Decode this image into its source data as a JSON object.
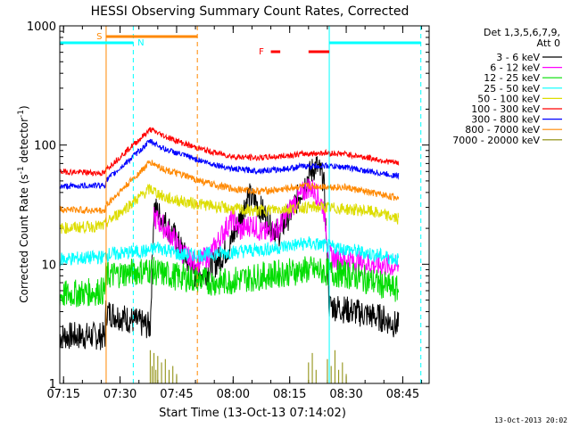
{
  "chart_data": {
    "type": "line",
    "title": "HESSI Observing Summary Count Rates, Corrected",
    "xlabel": "Start Time (13-Oct-13 07:14:02)",
    "ylabel_main": "Corrected Count Rate (s",
    "ylabel_sup1": "-1",
    "ylabel_mid": " detector",
    "ylabel_sup2": "-1",
    "ylabel_end": ")",
    "y_scale": "log",
    "ylim": [
      1,
      1000
    ],
    "xlim_minutes": [
      0,
      98
    ],
    "x_ticks": [
      {
        "label": "07:15",
        "t": 1
      },
      {
        "label": "07:30",
        "t": 16
      },
      {
        "label": "07:45",
        "t": 31
      },
      {
        "label": "08:00",
        "t": 46
      },
      {
        "label": "08:15",
        "t": 61
      },
      {
        "label": "08:30",
        "t": 76
      },
      {
        "label": "08:45",
        "t": 91
      }
    ],
    "y_ticks": [
      {
        "label": "1",
        "v": 1
      },
      {
        "label": "10",
        "v": 10
      },
      {
        "label": "100",
        "v": 100
      },
      {
        "label": "1000",
        "v": 1000
      }
    ],
    "legend_header": [
      "Det 1,3,5,6,7,9,",
      "Att 0"
    ],
    "series": [
      {
        "name": "3 - 6 keV",
        "color": "#000000",
        "points": [
          [
            0,
            2.5
          ],
          [
            12,
            2.5
          ],
          [
            12.2,
            4
          ],
          [
            24,
            3
          ],
          [
            25,
            30
          ],
          [
            30,
            18
          ],
          [
            33,
            12
          ],
          [
            36,
            8
          ],
          [
            40,
            9
          ],
          [
            45,
            14
          ],
          [
            48,
            25
          ],
          [
            50,
            38
          ],
          [
            53,
            30
          ],
          [
            56,
            22
          ],
          [
            58,
            18
          ],
          [
            62,
            30
          ],
          [
            66,
            55
          ],
          [
            68,
            68
          ],
          [
            70,
            52
          ],
          [
            71.5,
            4.5
          ],
          [
            78,
            4
          ],
          [
            86,
            3.5
          ],
          [
            90,
            3
          ]
        ]
      },
      {
        "name": "6 - 12 keV",
        "color": "#ff00ff",
        "points": [
          [
            25,
            25
          ],
          [
            30,
            17
          ],
          [
            33,
            12
          ],
          [
            36,
            10
          ],
          [
            40,
            12
          ],
          [
            44,
            20
          ],
          [
            46,
            24
          ],
          [
            48,
            19
          ],
          [
            51,
            22
          ],
          [
            54,
            18
          ],
          [
            58,
            20
          ],
          [
            62,
            32
          ],
          [
            66,
            45
          ],
          [
            68,
            40
          ],
          [
            70,
            30
          ],
          [
            71.5,
            11.5
          ],
          [
            76,
            11
          ],
          [
            82,
            10
          ],
          [
            90,
            9.5
          ]
        ]
      },
      {
        "name": "12 - 25 keV",
        "color": "#00dd00",
        "points": [
          [
            0,
            5.5
          ],
          [
            12,
            6
          ],
          [
            12.2,
            8
          ],
          [
            24,
            9
          ],
          [
            26,
            8.5
          ],
          [
            30,
            8
          ],
          [
            36,
            7.5
          ],
          [
            42,
            7
          ],
          [
            48,
            7.5
          ],
          [
            54,
            8
          ],
          [
            60,
            8.5
          ],
          [
            66,
            9
          ],
          [
            72,
            8.5
          ],
          [
            78,
            8
          ],
          [
            84,
            7
          ],
          [
            90,
            6
          ]
        ]
      },
      {
        "name": "25 - 50 keV",
        "color": "#00ffff",
        "points": [
          [
            0,
            11
          ],
          [
            12,
            11.5
          ],
          [
            12.2,
            12
          ],
          [
            24,
            13
          ],
          [
            26,
            14
          ],
          [
            32,
            12
          ],
          [
            38,
            12
          ],
          [
            44,
            12.5
          ],
          [
            50,
            13
          ],
          [
            56,
            13.5
          ],
          [
            62,
            14.5
          ],
          [
            66,
            15
          ],
          [
            72,
            14
          ],
          [
            78,
            13
          ],
          [
            84,
            12
          ],
          [
            90,
            11
          ]
        ]
      },
      {
        "name": "50 - 100 keV",
        "color": "#dddd00",
        "points": [
          [
            0,
            20
          ],
          [
            12,
            21
          ],
          [
            12.2,
            22
          ],
          [
            24,
            43
          ],
          [
            28,
            36
          ],
          [
            34,
            33
          ],
          [
            40,
            31
          ],
          [
            46,
            29
          ],
          [
            52,
            28
          ],
          [
            58,
            29
          ],
          [
            64,
            30
          ],
          [
            70,
            30
          ],
          [
            76,
            29
          ],
          [
            82,
            28
          ],
          [
            90,
            24
          ]
        ]
      },
      {
        "name": "100 - 300 keV",
        "color": "#ff0000",
        "points": [
          [
            0,
            60
          ],
          [
            12,
            58
          ],
          [
            12.2,
            62
          ],
          [
            24,
            135
          ],
          [
            28,
            118
          ],
          [
            34,
            100
          ],
          [
            40,
            88
          ],
          [
            46,
            80
          ],
          [
            52,
            78
          ],
          [
            58,
            80
          ],
          [
            64,
            84
          ],
          [
            70,
            86
          ],
          [
            76,
            84
          ],
          [
            82,
            78
          ],
          [
            90,
            70
          ]
        ]
      },
      {
        "name": "300 - 800 keV",
        "color": "#0000ff",
        "points": [
          [
            0,
            45
          ],
          [
            12,
            46
          ],
          [
            12.2,
            50
          ],
          [
            24,
            108
          ],
          [
            28,
            92
          ],
          [
            34,
            80
          ],
          [
            40,
            70
          ],
          [
            46,
            63
          ],
          [
            52,
            61
          ],
          [
            58,
            62
          ],
          [
            64,
            66
          ],
          [
            70,
            67
          ],
          [
            76,
            65
          ],
          [
            82,
            60
          ],
          [
            90,
            55
          ]
        ]
      },
      {
        "name": "800 - 7000 keV",
        "color": "#ff8800",
        "points": [
          [
            0,
            29
          ],
          [
            12,
            28
          ],
          [
            12.2,
            31
          ],
          [
            24,
            72
          ],
          [
            28,
            62
          ],
          [
            34,
            54
          ],
          [
            40,
            47
          ],
          [
            46,
            43
          ],
          [
            52,
            41
          ],
          [
            58,
            42
          ],
          [
            64,
            45
          ],
          [
            70,
            45
          ],
          [
            76,
            44
          ],
          [
            82,
            40
          ],
          [
            90,
            36
          ]
        ]
      },
      {
        "name": "7000 - 20000 keV",
        "color": "#888800",
        "points": [
          [
            24,
            1.8
          ],
          [
            26,
            1.6
          ],
          [
            28,
            1.5
          ],
          [
            30,
            1.2
          ],
          [
            31,
            1
          ]
        ]
      }
    ],
    "markers": {
      "s": {
        "label": "S",
        "color": "#ff8800"
      },
      "n": {
        "label": "N",
        "color": "#00ffff"
      },
      "f": {
        "label": "F",
        "color": "#ff0000"
      }
    },
    "timestamp": "13-Oct-2013 20:02"
  }
}
